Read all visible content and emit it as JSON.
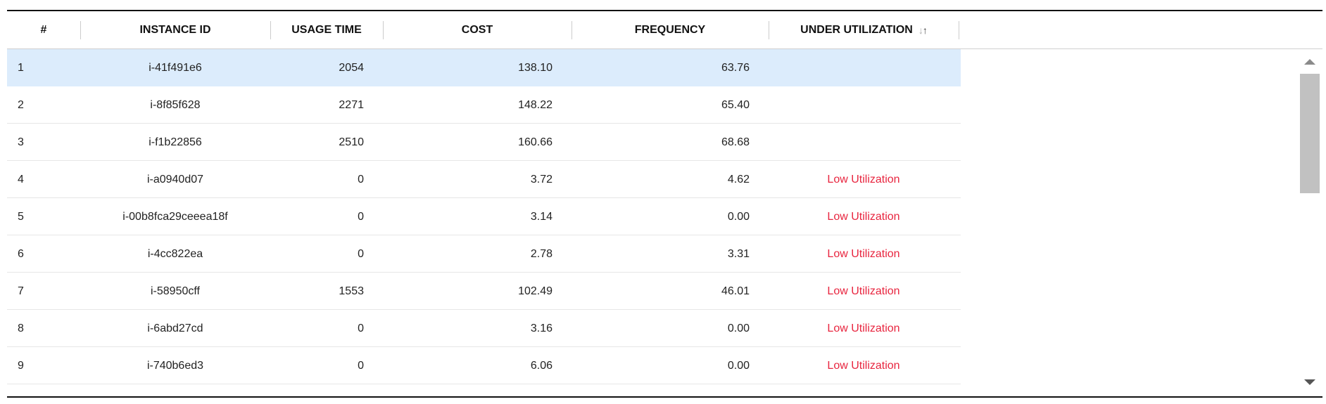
{
  "columns": {
    "num": "#",
    "instance_id": "INSTANCE ID",
    "usage_time": "USAGE TIME",
    "cost": "COST",
    "frequency": "FREQUENCY",
    "under_utilization": "UNDER UTILIZATION",
    "sort_down_icon": "↓",
    "sort_up_icon": "↑"
  },
  "rows": [
    {
      "num": "1",
      "instance_id": "i-41f491e6",
      "usage_time": "2054",
      "cost": "138.10",
      "frequency": "63.76",
      "utilization": ""
    },
    {
      "num": "2",
      "instance_id": "i-8f85f628",
      "usage_time": "2271",
      "cost": "148.22",
      "frequency": "65.40",
      "utilization": ""
    },
    {
      "num": "3",
      "instance_id": "i-f1b22856",
      "usage_time": "2510",
      "cost": "160.66",
      "frequency": "68.68",
      "utilization": ""
    },
    {
      "num": "4",
      "instance_id": "i-a0940d07",
      "usage_time": "0",
      "cost": "3.72",
      "frequency": "4.62",
      "utilization": "Low Utilization"
    },
    {
      "num": "5",
      "instance_id": "i-00b8fca29ceeea18f",
      "usage_time": "0",
      "cost": "3.14",
      "frequency": "0.00",
      "utilization": "Low Utilization"
    },
    {
      "num": "6",
      "instance_id": "i-4cc822ea",
      "usage_time": "0",
      "cost": "2.78",
      "frequency": "3.31",
      "utilization": "Low Utilization"
    },
    {
      "num": "7",
      "instance_id": "i-58950cff",
      "usage_time": "1553",
      "cost": "102.49",
      "frequency": "46.01",
      "utilization": "Low Utilization"
    },
    {
      "num": "8",
      "instance_id": "i-6abd27cd",
      "usage_time": "0",
      "cost": "3.16",
      "frequency": "0.00",
      "utilization": "Low Utilization"
    },
    {
      "num": "9",
      "instance_id": "i-740b6ed3",
      "usage_time": "0",
      "cost": "6.06",
      "frequency": "0.00",
      "utilization": "Low Utilization"
    }
  ],
  "colors": {
    "selected_row": "#dcecfc",
    "low_utilization": "#e8253f"
  }
}
